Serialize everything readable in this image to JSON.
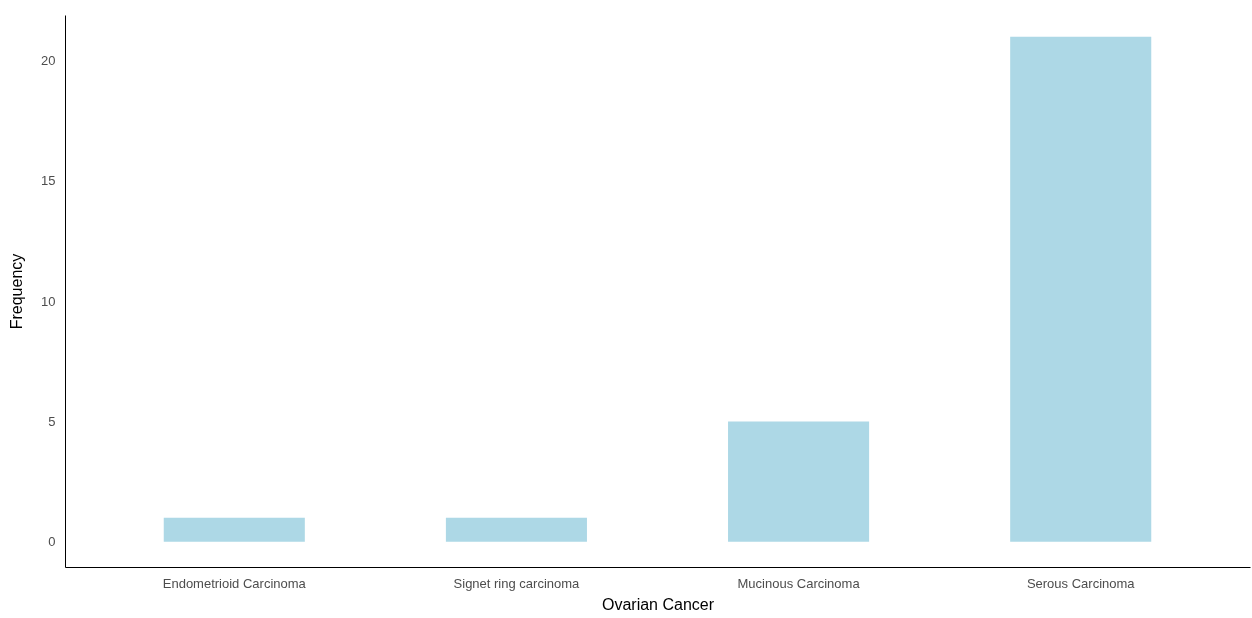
{
  "chart_data": {
    "type": "bar",
    "xlabel": "Ovarian Cancer",
    "ylabel": "Frequency",
    "categories": [
      "Endometrioid Carcinoma",
      "Signet ring carcinoma",
      "Mucinous Carcinoma",
      "Serous Carcinoma"
    ],
    "values": [
      1,
      1,
      5,
      21
    ],
    "color": "#add8e6",
    "ylim": [
      -1.05,
      21.9
    ],
    "yticks": [
      0,
      5,
      10,
      15,
      20
    ],
    "grid": false
  }
}
